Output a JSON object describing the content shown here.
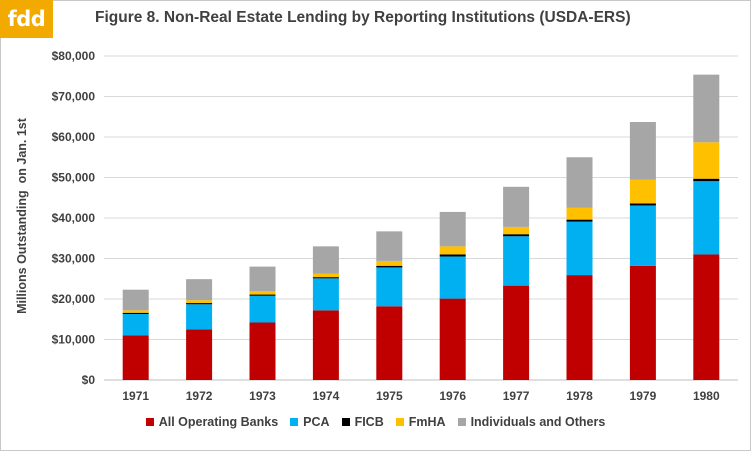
{
  "logo_text": "fdd",
  "title": "Figure 8. Non-Real Estate Lending by Reporting Institutions (USDA-ERS)",
  "ylabel": "Millions Outstanding  on Jan. 1st",
  "chart_data": {
    "type": "bar",
    "stacked": true,
    "title": "Figure 8. Non-Real Estate Lending by Reporting Institutions (USDA-ERS)",
    "xlabel": "",
    "ylabel": "Millions Outstanding  on Jan. 1st",
    "categories": [
      "1971",
      "1972",
      "1973",
      "1974",
      "1975",
      "1976",
      "1977",
      "1978",
      "1979",
      "1980"
    ],
    "ylim": [
      0,
      80000
    ],
    "yticks": [
      0,
      10000,
      20000,
      30000,
      40000,
      50000,
      60000,
      70000,
      80000
    ],
    "ytick_labels": [
      "$0",
      "$10,000",
      "$20,000",
      "$30,000",
      "$40,000",
      "$50,000",
      "$60,000",
      "$70,000",
      "$80,000"
    ],
    "grid": true,
    "legend_position": "bottom",
    "series": [
      {
        "name": "All Operating Banks",
        "color": "#c00000",
        "values": [
          11000,
          12500,
          14200,
          17200,
          18200,
          20100,
          23300,
          25900,
          28200,
          31000
        ]
      },
      {
        "name": "PCA",
        "color": "#00b0f0",
        "values": [
          5300,
          6200,
          6600,
          7900,
          9600,
          10400,
          12200,
          13200,
          14900,
          18100
        ]
      },
      {
        "name": "FICB",
        "color": "#000000",
        "values": [
          300,
          300,
          300,
          300,
          400,
          500,
          500,
          500,
          500,
          600
        ]
      },
      {
        "name": "FmHA",
        "color": "#ffc000",
        "values": [
          600,
          700,
          800,
          900,
          1200,
          2000,
          1800,
          2900,
          5900,
          9000
        ]
      },
      {
        "name": "Individuals and Others",
        "color": "#a6a6a6",
        "values": [
          5100,
          5200,
          6100,
          6700,
          7300,
          8500,
          9900,
          12500,
          14200,
          16700
        ]
      }
    ]
  }
}
